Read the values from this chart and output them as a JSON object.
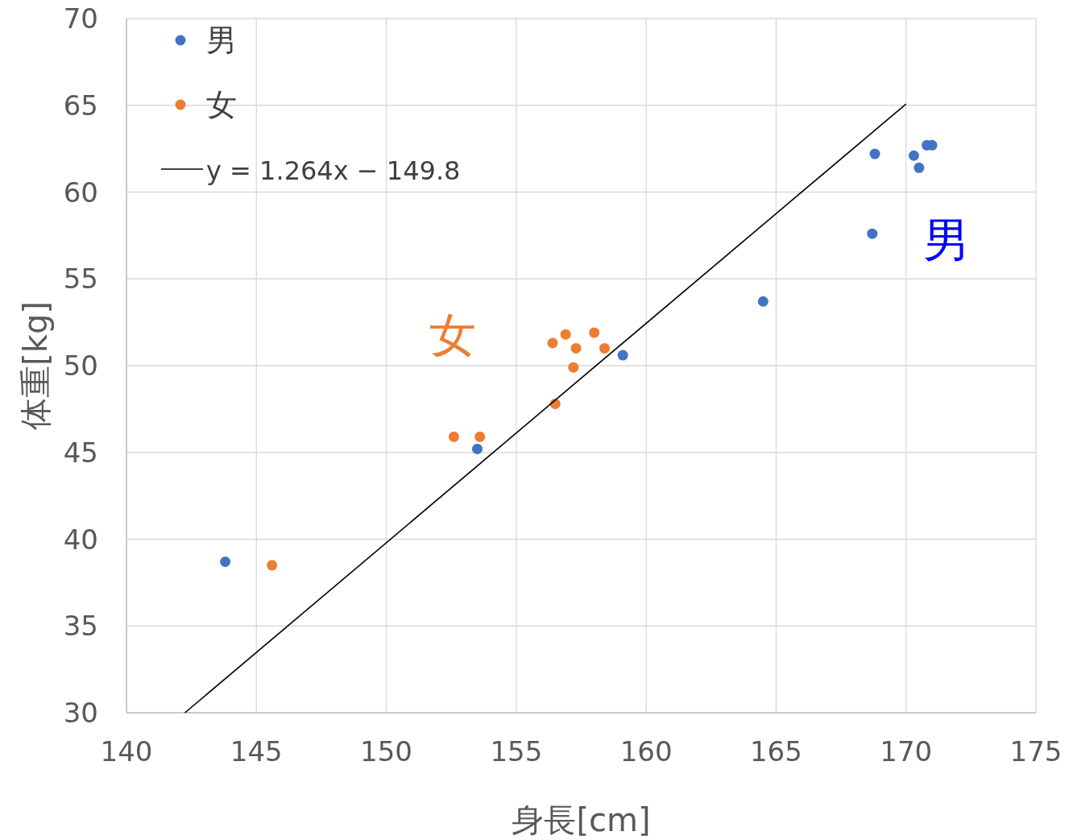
{
  "chart_data": {
    "type": "scatter",
    "xlabel": "身長[cm]",
    "ylabel": "体重[kg]",
    "xlim": [
      140,
      175
    ],
    "ylim": [
      30,
      70
    ],
    "xticks": [
      140,
      145,
      150,
      155,
      160,
      165,
      170,
      175
    ],
    "yticks": [
      30,
      35,
      40,
      45,
      50,
      55,
      60,
      65,
      70
    ],
    "grid": true,
    "legend": "top left",
    "marker": "circle",
    "series": [
      {
        "name": "男",
        "color": "#4472c4",
        "x": [
          143.8,
          153.5,
          159.1,
          164.5,
          168.7,
          168.8,
          170.3,
          170.5,
          170.8,
          171.0
        ],
        "values": [
          38.7,
          45.2,
          50.6,
          53.7,
          57.6,
          62.2,
          62.1,
          61.4,
          62.7,
          62.7
        ]
      },
      {
        "name": "女",
        "color": "#ed7d31",
        "x": [
          145.6,
          152.6,
          153.6,
          156.4,
          156.9,
          157.3,
          157.2,
          156.5,
          158.0,
          158.4
        ],
        "values": [
          38.5,
          45.9,
          45.9,
          51.3,
          51.8,
          51.0,
          49.9,
          47.8,
          51.9,
          51.0
        ]
      },
      {
        "name": "y = 1.264x − 149.8",
        "type": "line",
        "marker": "none",
        "color": "#000000",
        "x": [
          142.25,
          170
        ],
        "values": [
          30,
          65.08
        ]
      }
    ],
    "annotations": [
      "男",
      "女"
    ]
  }
}
